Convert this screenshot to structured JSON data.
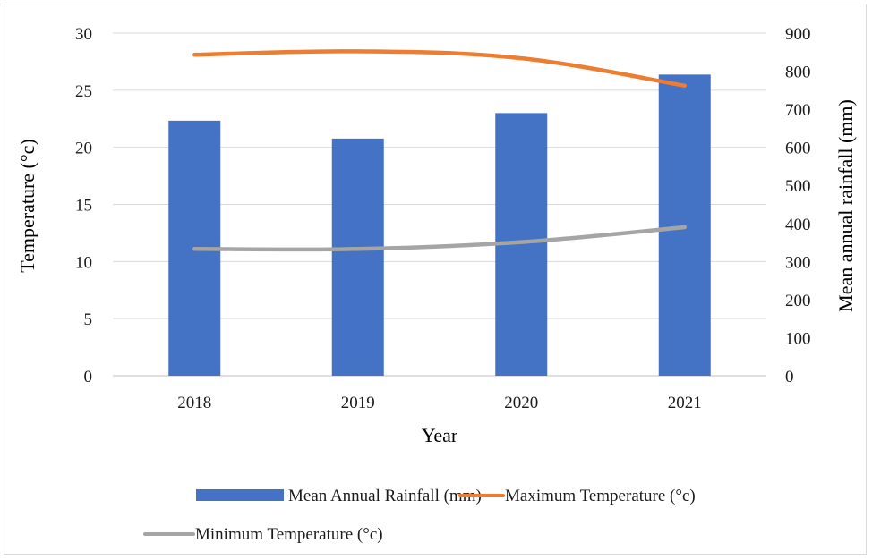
{
  "chart_data": {
    "type": "bar",
    "categories": [
      "2018",
      "2019",
      "2020",
      "2021"
    ],
    "xlabel": "Year",
    "ylabel_left": "Temperature (°c)",
    "ylabel_right": "Mean annual rainfall (mm)",
    "ylim_left": [
      0,
      30
    ],
    "yticks_left": [
      0,
      5,
      10,
      15,
      20,
      25,
      30
    ],
    "ylim_right": [
      0,
      900
    ],
    "yticks_right": [
      0,
      100,
      200,
      300,
      400,
      500,
      600,
      700,
      800,
      900
    ],
    "grid": true,
    "legend_position": "bottom",
    "series": [
      {
        "name": "Mean Annual Rainfall (mm)",
        "type": "bar",
        "axis": "right",
        "color": "#4472c4",
        "values": [
          670,
          623,
          690,
          791
        ]
      },
      {
        "name": "Maximum Temperature (°c)",
        "type": "line",
        "axis": "left",
        "color": "#ed7d31",
        "values": [
          28.1,
          28.4,
          27.8,
          25.4
        ]
      },
      {
        "name": "Minimum Temperature (°c)",
        "type": "line",
        "axis": "left",
        "color": "#a5a5a5",
        "values": [
          11.1,
          11.1,
          11.7,
          13.0
        ]
      }
    ]
  }
}
